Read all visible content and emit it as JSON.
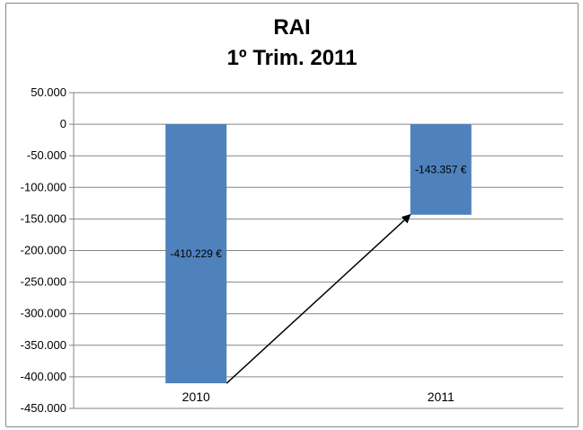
{
  "chart_data": {
    "type": "bar",
    "title_lines": [
      "RAI",
      "1º Trim. 2011"
    ],
    "categories": [
      "2010",
      "2011"
    ],
    "values": [
      -410229,
      -143357
    ],
    "data_labels": [
      "-410.229 €",
      "-143.357 €"
    ],
    "ylim": [
      -450000,
      50000
    ],
    "y_ticks": [
      50000,
      0,
      -50000,
      -100000,
      -150000,
      -200000,
      -250000,
      -300000,
      -350000,
      -400000,
      -450000
    ],
    "y_tick_labels": [
      "50.000",
      "0",
      "-50.000",
      "-100.000",
      "-150.000",
      "-200.000",
      "-250.000",
      "-300.000",
      "-350.000",
      "-400.000",
      "-450.000"
    ],
    "grid": true,
    "legend": "none",
    "bar_color": "#4F81BD",
    "annotation": {
      "type": "arrow",
      "from_category": "2010",
      "to_category": "2011"
    }
  }
}
